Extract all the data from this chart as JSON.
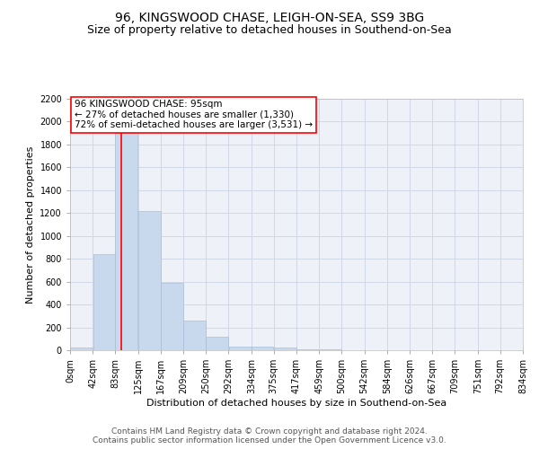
{
  "title": "96, KINGSWOOD CHASE, LEIGH-ON-SEA, SS9 3BG",
  "subtitle": "Size of property relative to detached houses in Southend-on-Sea",
  "xlabel": "Distribution of detached houses by size in Southend-on-Sea",
  "ylabel": "Number of detached properties",
  "annotation_line1": "96 KINGSWOOD CHASE: 95sqm",
  "annotation_line2": "← 27% of detached houses are smaller (1,330)",
  "annotation_line3": "72% of semi-detached houses are larger (3,531) →",
  "footer_line1": "Contains HM Land Registry data © Crown copyright and database right 2024.",
  "footer_line2": "Contains public sector information licensed under the Open Government Licence v3.0.",
  "bar_color": "#c9d9ed",
  "bar_edge_color": "#a8bfd8",
  "bar_left_edges": [
    0,
    42,
    83,
    125,
    167,
    209,
    250,
    292,
    334,
    375,
    417,
    459,
    500,
    542,
    584,
    626,
    667,
    709,
    751,
    792
  ],
  "bar_widths": [
    42,
    41,
    42,
    42,
    42,
    41,
    42,
    42,
    41,
    42,
    42,
    41,
    42,
    42,
    42,
    41,
    42,
    42,
    41,
    42
  ],
  "bar_heights": [
    25,
    840,
    1900,
    1220,
    590,
    260,
    120,
    35,
    35,
    20,
    10,
    5,
    2,
    1,
    1,
    0,
    0,
    0,
    0,
    0
  ],
  "x_tick_labels": [
    "0sqm",
    "42sqm",
    "83sqm",
    "125sqm",
    "167sqm",
    "209sqm",
    "250sqm",
    "292sqm",
    "334sqm",
    "375sqm",
    "417sqm",
    "459sqm",
    "500sqm",
    "542sqm",
    "584sqm",
    "626sqm",
    "667sqm",
    "709sqm",
    "751sqm",
    "792sqm",
    "834sqm"
  ],
  "x_tick_positions": [
    0,
    42,
    83,
    125,
    167,
    209,
    250,
    292,
    334,
    375,
    417,
    459,
    500,
    542,
    584,
    626,
    667,
    709,
    751,
    792,
    834
  ],
  "ylim": [
    0,
    2200
  ],
  "xlim": [
    0,
    834
  ],
  "y_ticks": [
    0,
    200,
    400,
    600,
    800,
    1000,
    1200,
    1400,
    1600,
    1800,
    2000,
    2200
  ],
  "property_size": 95,
  "red_line_x": 95,
  "grid_color": "#d0d8e8",
  "background_color": "#eef2f8",
  "title_fontsize": 10,
  "subtitle_fontsize": 9,
  "ylabel_fontsize": 8,
  "xlabel_fontsize": 8,
  "tick_fontsize": 7,
  "annotation_fontsize": 7.5,
  "footer_fontsize": 6.5
}
